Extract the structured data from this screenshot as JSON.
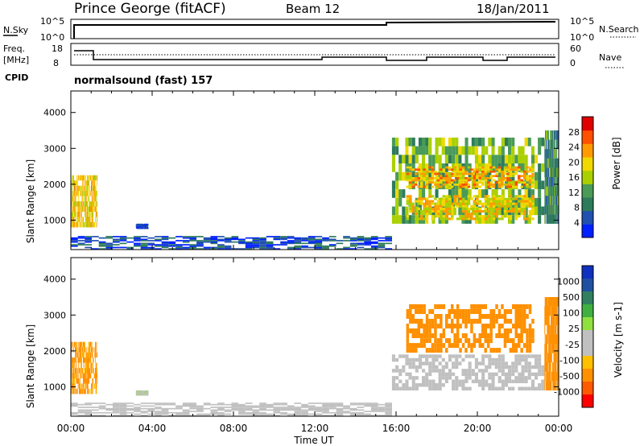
{
  "header": {
    "station": "Prince George (fitACF)",
    "beam": "Beam 12",
    "date": "18/Jan/2011"
  },
  "noise_panel": {
    "left_label": "N.Sky",
    "right_label": "N.Search",
    "left_ticks": [
      "10^5",
      "10^0"
    ],
    "right_ticks": [
      "10^5",
      "10^0"
    ]
  },
  "freq_panel": {
    "left_label_1": "Freq.",
    "left_label_2": "[MHz]",
    "right_label": "Nave",
    "left_ticks": [
      "18",
      "8"
    ],
    "right_ticks": [
      "60",
      "0"
    ]
  },
  "cpid": {
    "label": "CPID",
    "program": "normalsound (fast) 157"
  },
  "colors": {
    "power": [
      "#0020ff",
      "#2050b0",
      "#2d7b5a",
      "#4a9a58",
      "#aad000",
      "#f0d800",
      "#ff9a00",
      "#ff5000",
      "#e00000"
    ],
    "velocity": [
      "#ff0000",
      "#ff5a00",
      "#ff9000",
      "#ffc000",
      "#c0c0c0",
      "#c0c0c0",
      "#90e040",
      "#40b040",
      "#308060",
      "#2050a0",
      "#1030c0"
    ],
    "ground_scatter": "#c0c0c0"
  },
  "chart_data": [
    {
      "type": "heatmap",
      "name": "power",
      "ylabel": "Slant Range [km]",
      "xlabel": "",
      "colorbar_label": "Power [dB]",
      "colorbar_ticks": [
        "4",
        "8",
        "12",
        "16",
        "20",
        "24",
        "28"
      ],
      "colorbar_range": [
        0,
        32
      ],
      "y_ticks": [
        "1000",
        "2000",
        "3000",
        "4000"
      ],
      "ylim": [
        180,
        4600
      ],
      "x_ticks": [
        "00:00",
        "04:00",
        "08:00",
        "12:00",
        "16:00",
        "20:00",
        "00:00"
      ],
      "xlim_hours": [
        0,
        24
      ],
      "regions": [
        {
          "t": [
            0.0,
            1.3
          ],
          "r": [
            800,
            2250
          ],
          "level": 20
        },
        {
          "t": [
            3.2,
            3.8
          ],
          "r": [
            760,
            900
          ],
          "level": 4
        },
        {
          "t": [
            0.0,
            15.8
          ],
          "r": [
            180,
            560
          ],
          "level": 5
        },
        {
          "t": [
            15.8,
            23.3
          ],
          "r": [
            900,
            3300
          ],
          "level": 14
        },
        {
          "t": [
            16.5,
            22.8
          ],
          "r": [
            1900,
            2500
          ],
          "level": 22
        },
        {
          "t": [
            16.5,
            22.8
          ],
          "r": [
            1000,
            1700
          ],
          "level": 20
        },
        {
          "t": [
            23.3,
            24.0
          ],
          "r": [
            900,
            3500
          ],
          "level": 10
        }
      ]
    },
    {
      "type": "heatmap",
      "name": "velocity",
      "ylabel": "Slant Range [km]",
      "xlabel": "Time UT",
      "colorbar_label": "Velocity [m s-1]",
      "colorbar_ticks": [
        "-1000",
        "-500",
        "-100",
        "-25",
        "25",
        "100",
        "500",
        "1000"
      ],
      "y_ticks": [
        "1000",
        "2000",
        "3000",
        "4000"
      ],
      "ylim": [
        180,
        4600
      ],
      "x_ticks": [
        "00:00",
        "04:00",
        "08:00",
        "12:00",
        "16:00",
        "20:00",
        "00:00"
      ],
      "xlim_hours": [
        0,
        24
      ],
      "regions": [
        {
          "t": [
            0.0,
            1.3
          ],
          "r": [
            800,
            2250
          ],
          "velocity": -150
        },
        {
          "t": [
            3.2,
            3.8
          ],
          "r": [
            760,
            900
          ],
          "velocity": 80
        },
        {
          "t": [
            0.0,
            15.8
          ],
          "r": [
            180,
            560
          ],
          "velocity": 40
        },
        {
          "t": [
            15.8,
            23.3
          ],
          "r": [
            900,
            1900
          ],
          "velocity": 0,
          "ground_scatter": true
        },
        {
          "t": [
            16.5,
            22.8
          ],
          "r": [
            1950,
            3300
          ],
          "velocity": -300
        },
        {
          "t": [
            23.3,
            24.0
          ],
          "r": [
            900,
            3500
          ],
          "velocity": -200
        }
      ]
    }
  ]
}
